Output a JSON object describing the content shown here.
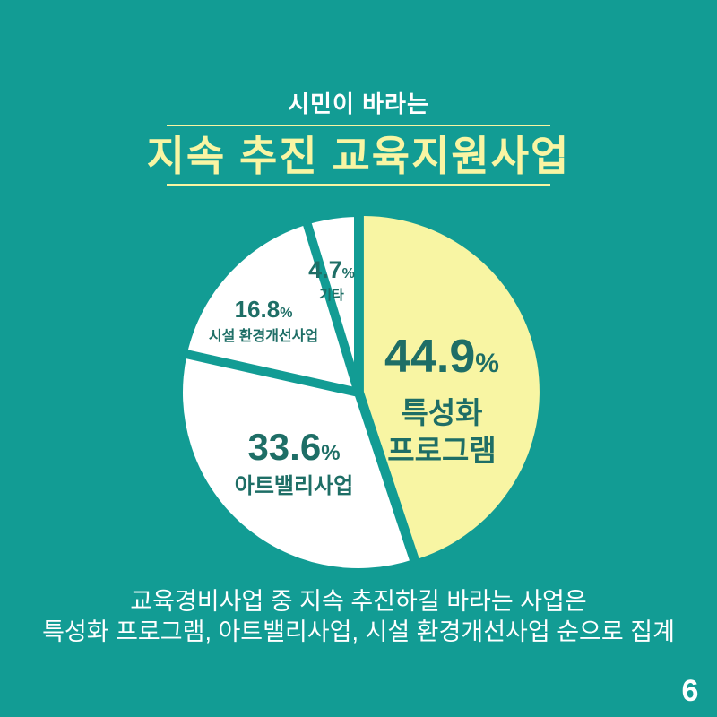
{
  "header": {
    "subtitle": "시민이 바라는",
    "title": "지속 추진 교육지원사업"
  },
  "chart_data": {
    "type": "pie",
    "title": "지속 추진 교육지원사업",
    "unit": "%",
    "direction": "clockwise",
    "start_angle_deg": 0,
    "highlight_index": 0,
    "legend_position": "none",
    "label_text_color": "#1e6e66",
    "slices": [
      {
        "name": "특성화 프로그램",
        "name_lines": [
          "특성화",
          "프로그램"
        ],
        "value": 44.9,
        "color": "#f8f5a3"
      },
      {
        "name": "아트밸리사업",
        "name_lines": [
          "아트밸리사업"
        ],
        "value": 33.6,
        "color": "#ffffff"
      },
      {
        "name": "시설 환경개선사업",
        "name_lines": [
          "시설 환경개선사업"
        ],
        "value": 16.8,
        "color": "#ffffff"
      },
      {
        "name": "기타",
        "name_lines": [
          "기타"
        ],
        "value": 4.7,
        "color": "#ffffff"
      }
    ]
  },
  "caption": {
    "line1": "교육경비사업 중 지속 추진하길 바라는 사업은",
    "line2": "특성화 프로그램, 아트밸리사업, 시설 환경개선사업 순으로 집계"
  },
  "footer": {
    "page_number": "6"
  },
  "colors": {
    "background": "#129c94",
    "accent_yellow": "#f8f5a3",
    "text_dark": "#1e6e66",
    "white": "#ffffff"
  }
}
